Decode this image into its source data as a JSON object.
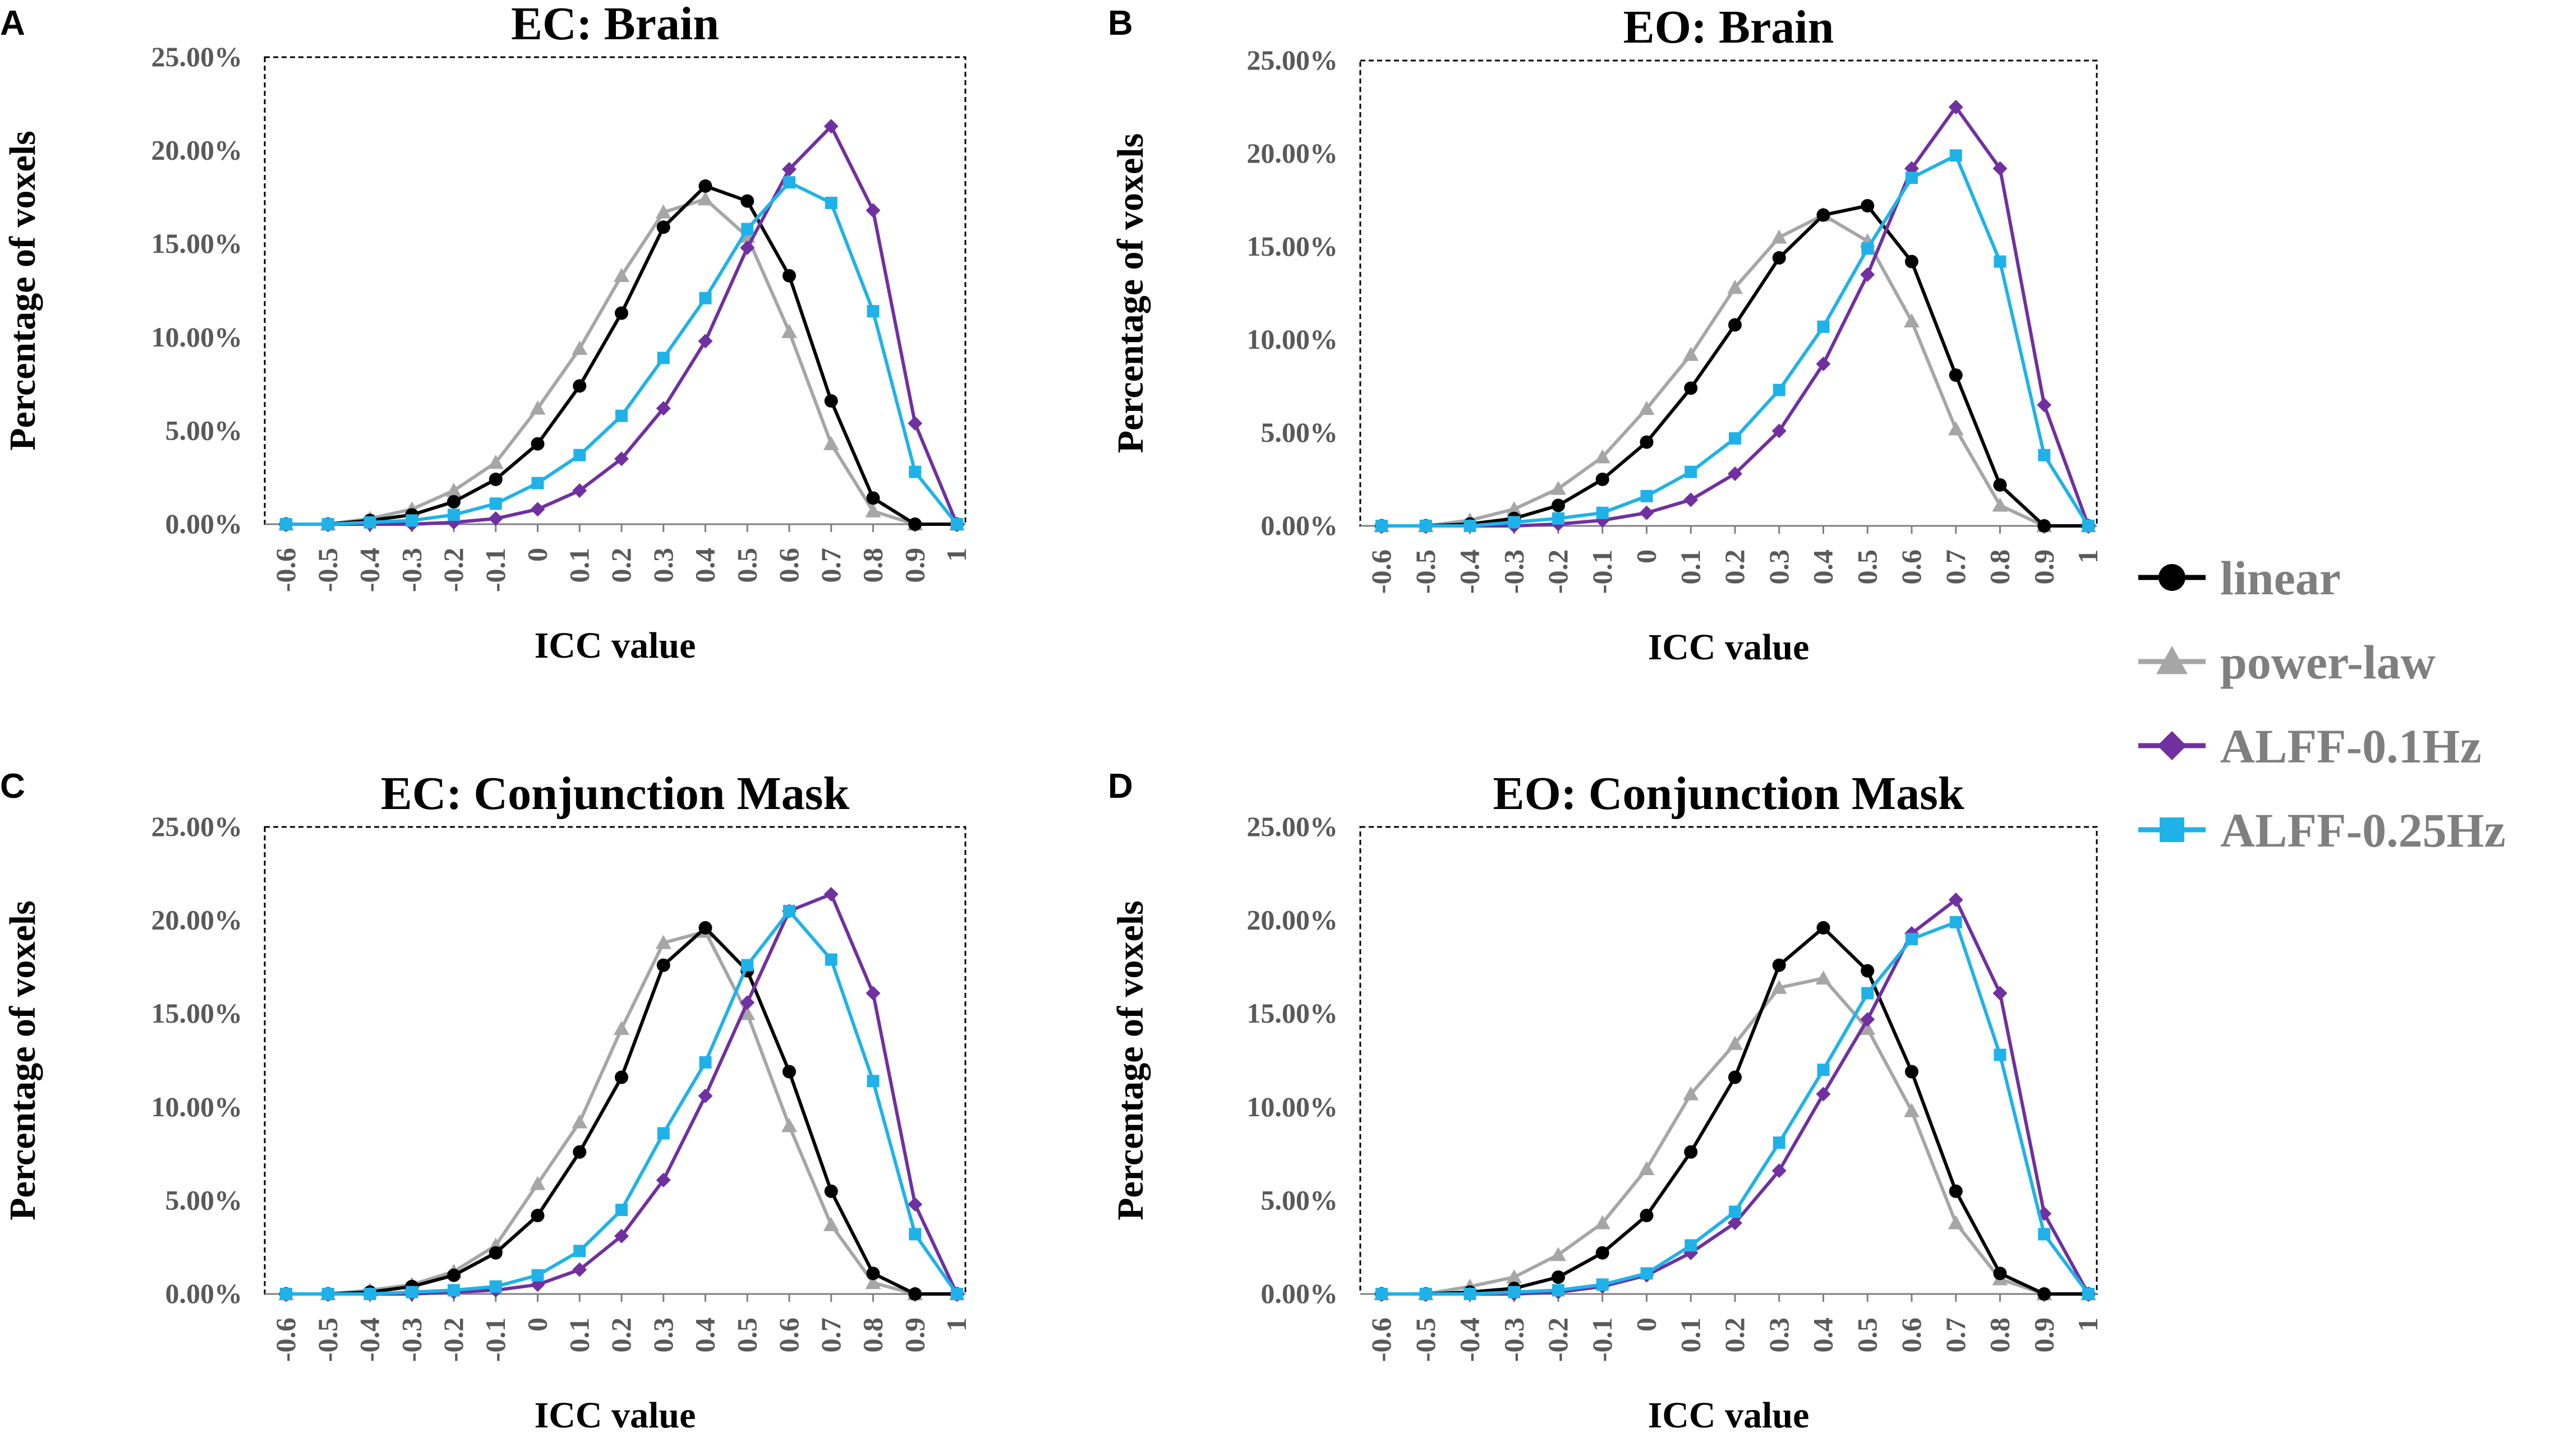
{
  "chart_data": [
    {
      "type": "line",
      "panel_label": "A",
      "title": "EC: Brain",
      "xlabel": "ICC value",
      "ylabel": "Percentage of voxels",
      "categories": [
        "-0.6",
        "-0.5",
        "-0.4",
        "-0.3",
        "-0.2",
        "-0.1",
        "0",
        "0.1",
        "0.2",
        "0.3",
        "0.4",
        "0.5",
        "0.6",
        "0.7",
        "0.8",
        "0.9",
        "1"
      ],
      "yticks": [
        "0.00%",
        "5.00%",
        "10.00%",
        "15.00%",
        "20.00%",
        "25.00%"
      ],
      "ylim": [
        0,
        25
      ],
      "grid": false,
      "series": [
        {
          "name": "linear",
          "values": [
            0,
            0,
            0.2,
            0.5,
            1.2,
            2.4,
            4.3,
            7.4,
            11.3,
            15.9,
            18.1,
            17.3,
            13.3,
            6.6,
            1.4,
            0,
            0
          ]
        },
        {
          "name": "power-law",
          "values": [
            0,
            0,
            0.3,
            0.8,
            1.8,
            3.3,
            6.2,
            9.4,
            13.3,
            16.7,
            17.4,
            15.4,
            10.3,
            4.3,
            0.7,
            0,
            0
          ]
        },
        {
          "name": "ALFF-0.1Hz",
          "values": [
            0,
            0,
            0,
            0,
            0.1,
            0.3,
            0.8,
            1.8,
            3.5,
            6.2,
            9.8,
            14.8,
            19.0,
            21.3,
            16.8,
            5.4,
            0
          ]
        },
        {
          "name": "ALFF-0.25Hz",
          "values": [
            0,
            0,
            0.1,
            0.2,
            0.5,
            1.1,
            2.2,
            3.7,
            5.8,
            8.9,
            12.1,
            15.8,
            18.3,
            17.2,
            11.4,
            2.8,
            0
          ]
        }
      ]
    },
    {
      "type": "line",
      "panel_label": "B",
      "title": "EO: Brain",
      "xlabel": "ICC value",
      "ylabel": "Percentage of voxels",
      "categories": [
        "-0.6",
        "-0.5",
        "-0.4",
        "-0.3",
        "-0.2",
        "-0.1",
        "0",
        "0.1",
        "0.2",
        "0.3",
        "0.4",
        "0.5",
        "0.6",
        "0.7",
        "0.8",
        "0.9",
        "1"
      ],
      "yticks": [
        "0.00%",
        "5.00%",
        "10.00%",
        "15.00%",
        "20.00%",
        "25.00%"
      ],
      "ylim": [
        0,
        25
      ],
      "grid": false,
      "series": [
        {
          "name": "linear",
          "values": [
            0,
            0,
            0.1,
            0.4,
            1.1,
            2.5,
            4.5,
            7.4,
            10.8,
            14.4,
            16.7,
            17.2,
            14.2,
            8.1,
            2.2,
            0,
            0
          ]
        },
        {
          "name": "power-law",
          "values": [
            0,
            0,
            0.3,
            0.9,
            2.0,
            3.7,
            6.3,
            9.2,
            12.8,
            15.5,
            16.7,
            15.3,
            11.0,
            5.2,
            1.1,
            0,
            0
          ]
        },
        {
          "name": "ALFF-0.1Hz",
          "values": [
            0,
            0,
            0,
            0,
            0.1,
            0.3,
            0.7,
            1.4,
            2.8,
            5.1,
            8.7,
            13.5,
            19.2,
            22.5,
            19.2,
            6.5,
            0
          ]
        },
        {
          "name": "ALFF-0.25Hz",
          "values": [
            0,
            0,
            0,
            0.2,
            0.4,
            0.7,
            1.6,
            2.9,
            4.7,
            7.3,
            10.7,
            14.9,
            18.7,
            19.9,
            14.2,
            3.8,
            0
          ]
        }
      ]
    },
    {
      "type": "line",
      "panel_label": "C",
      "title": "EC: Conjunction Mask",
      "xlabel": "ICC value",
      "ylabel": "Percentage of voxels",
      "categories": [
        "-0.6",
        "-0.5",
        "-0.4",
        "-0.3",
        "-0.2",
        "-0.1",
        "0",
        "0.1",
        "0.2",
        "0.3",
        "0.4",
        "0.5",
        "0.6",
        "0.7",
        "0.8",
        "0.9",
        "1"
      ],
      "yticks": [
        "0.00%",
        "5.00%",
        "10.00%",
        "15.00%",
        "20.00%",
        "25.00%"
      ],
      "ylim": [
        0,
        25
      ],
      "grid": false,
      "series": [
        {
          "name": "linear",
          "values": [
            0,
            0,
            0.1,
            0.4,
            1.0,
            2.2,
            4.2,
            7.6,
            11.6,
            17.6,
            19.6,
            17.3,
            11.9,
            5.5,
            1.1,
            0,
            0
          ]
        },
        {
          "name": "power-law",
          "values": [
            0,
            0,
            0.2,
            0.5,
            1.2,
            2.6,
            5.9,
            9.2,
            14.2,
            18.8,
            19.4,
            15.0,
            9.0,
            3.7,
            0.6,
            0,
            0
          ]
        },
        {
          "name": "ALFF-0.1Hz",
          "values": [
            0,
            0,
            0,
            0,
            0.1,
            0.2,
            0.5,
            1.3,
            3.1,
            6.1,
            10.6,
            15.6,
            20.5,
            21.4,
            16.1,
            4.8,
            0
          ]
        },
        {
          "name": "ALFF-0.25Hz",
          "values": [
            0,
            0,
            0,
            0.1,
            0.2,
            0.4,
            1.0,
            2.3,
            4.5,
            8.6,
            12.4,
            17.6,
            20.5,
            17.9,
            11.4,
            3.2,
            0
          ]
        }
      ]
    },
    {
      "type": "line",
      "panel_label": "D",
      "title": "EO: Conjunction Mask",
      "xlabel": "ICC value",
      "ylabel": "Percentage of voxels",
      "categories": [
        "-0.6",
        "-0.5",
        "-0.4",
        "-0.3",
        "-0.2",
        "-0.1",
        "0",
        "0.1",
        "0.2",
        "0.3",
        "0.4",
        "0.5",
        "0.6",
        "0.7",
        "0.8",
        "0.9",
        "1"
      ],
      "yticks": [
        "0.00%",
        "5.00%",
        "10.00%",
        "15.00%",
        "20.00%",
        "25.00%"
      ],
      "ylim": [
        0,
        25
      ],
      "grid": false,
      "series": [
        {
          "name": "linear",
          "values": [
            0,
            0,
            0.1,
            0.3,
            0.9,
            2.2,
            4.2,
            7.6,
            11.6,
            17.6,
            19.6,
            17.3,
            11.9,
            5.5,
            1.1,
            0,
            0
          ]
        },
        {
          "name": "power-law",
          "values": [
            0,
            0,
            0.4,
            0.9,
            2.1,
            3.8,
            6.7,
            10.7,
            13.4,
            16.4,
            16.9,
            14.2,
            9.8,
            3.8,
            0.8,
            0,
            0
          ]
        },
        {
          "name": "ALFF-0.1Hz",
          "values": [
            0,
            0,
            0,
            0,
            0.1,
            0.4,
            1.0,
            2.2,
            3.8,
            6.6,
            10.7,
            14.7,
            19.3,
            21.1,
            16.1,
            4.3,
            0
          ]
        },
        {
          "name": "ALFF-0.25Hz",
          "values": [
            0,
            0,
            0,
            0.1,
            0.2,
            0.5,
            1.1,
            2.6,
            4.4,
            8.1,
            12.0,
            16.1,
            19.0,
            19.9,
            12.8,
            3.2,
            0
          ]
        }
      ]
    }
  ],
  "legend": {
    "placement": "right",
    "items": [
      {
        "label": "linear",
        "color": "#000000",
        "marker": "circle"
      },
      {
        "label": "power-law",
        "color": "#a6a6a6",
        "marker": "triangle"
      },
      {
        "label": "ALFF-0.1Hz",
        "color": "#7030a0",
        "marker": "diamond"
      },
      {
        "label": "ALFF-0.25Hz",
        "color": "#1fb2e8",
        "marker": "square"
      }
    ]
  }
}
